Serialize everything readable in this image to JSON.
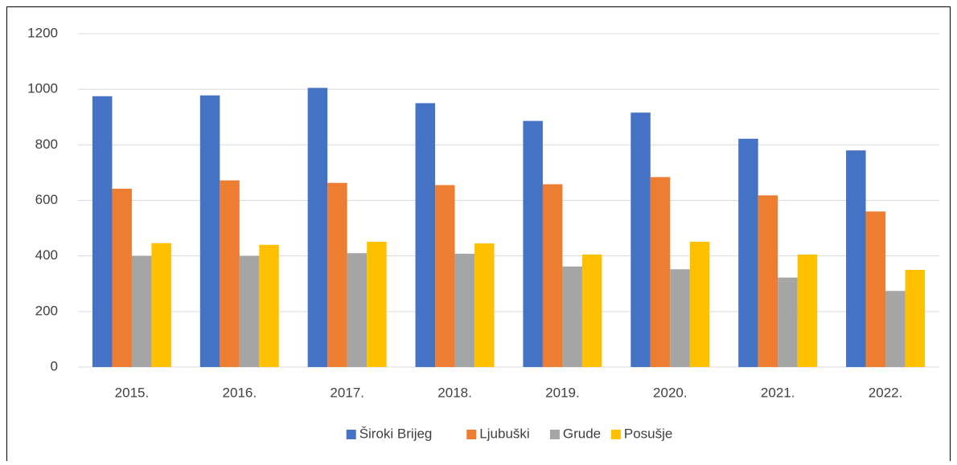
{
  "chart_data": {
    "type": "bar",
    "categories": [
      "2015.",
      "2016.",
      "2017.",
      "2018.",
      "2019.",
      "2020.",
      "2021.",
      "2022."
    ],
    "series": [
      {
        "name": "Široki Brijeg",
        "color": "#4472c4",
        "values": [
          975,
          978,
          1005,
          950,
          886,
          916,
          822,
          780
        ]
      },
      {
        "name": "Ljubuški",
        "color": "#ed7d31",
        "values": [
          642,
          672,
          663,
          655,
          658,
          684,
          618,
          560
        ]
      },
      {
        "name": "Grude",
        "color": "#a5a5a5",
        "values": [
          400,
          400,
          410,
          408,
          362,
          352,
          322,
          274
        ]
      },
      {
        "name": "Posušje",
        "color": "#ffc000",
        "values": [
          446,
          440,
          451,
          445,
          405,
          451,
          405,
          350
        ]
      }
    ],
    "ylim": [
      0,
      1200
    ],
    "yticks": [
      0,
      200,
      400,
      600,
      800,
      1000,
      1200
    ],
    "grid": true,
    "legend": "bottom"
  }
}
